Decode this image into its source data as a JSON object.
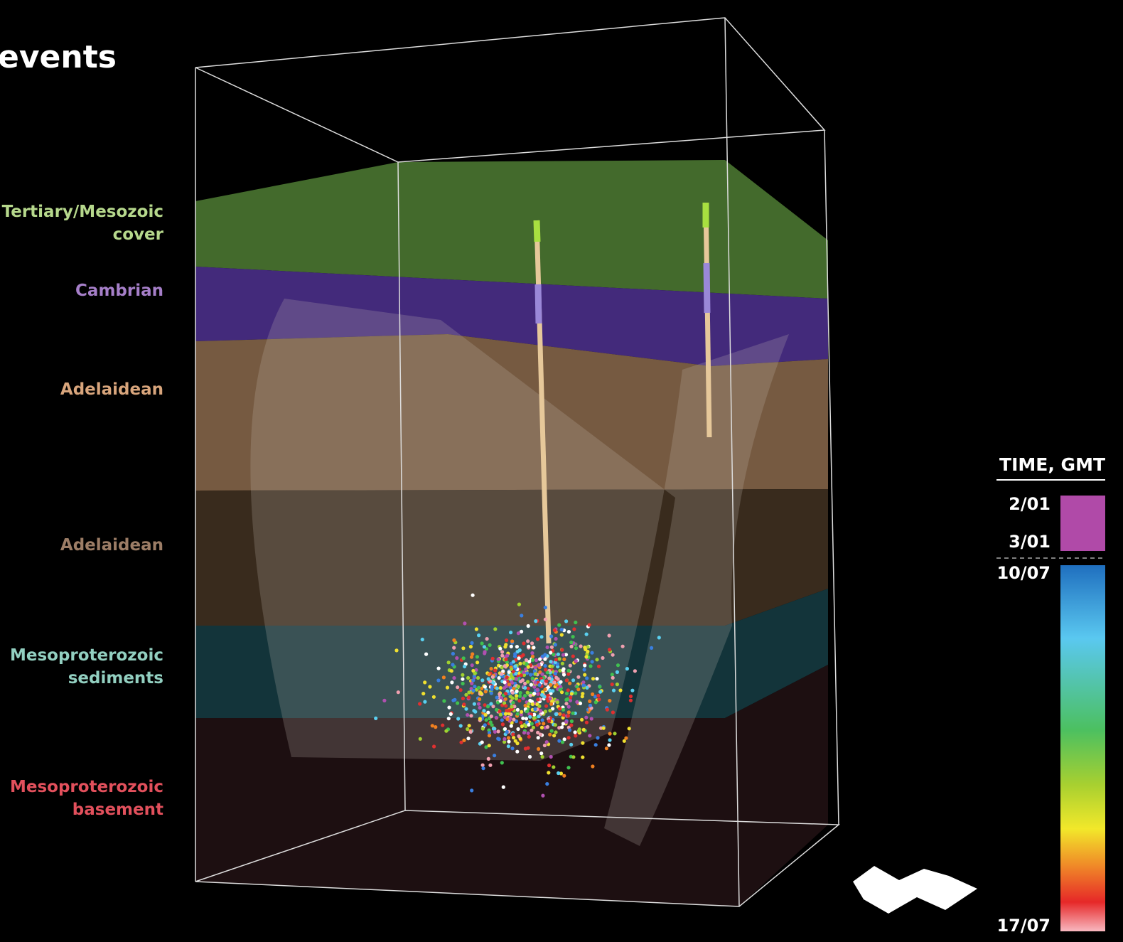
{
  "title": "events",
  "layers": [
    {
      "lines": [
        "Tertiary/Mesozoic",
        "cover"
      ],
      "color": "#b6d88c"
    },
    {
      "lines": [
        "Cambrian"
      ],
      "color": "#a67fc9"
    },
    {
      "lines": [
        "Adelaidean"
      ],
      "color": "#d8a57c"
    },
    {
      "lines": [
        "Adelaidean"
      ],
      "color": "#9c7d66"
    },
    {
      "lines": [
        "Mesoproterozoic",
        "sediments"
      ],
      "color": "#92cfc0"
    },
    {
      "lines": [
        "Mesoproterozoic",
        "basement"
      ],
      "color": "#e2505c"
    }
  ],
  "legend": {
    "title": "TIME, GMT",
    "labels": [
      "2/01",
      "3/01",
      "10/07",
      "17/07"
    ]
  }
}
